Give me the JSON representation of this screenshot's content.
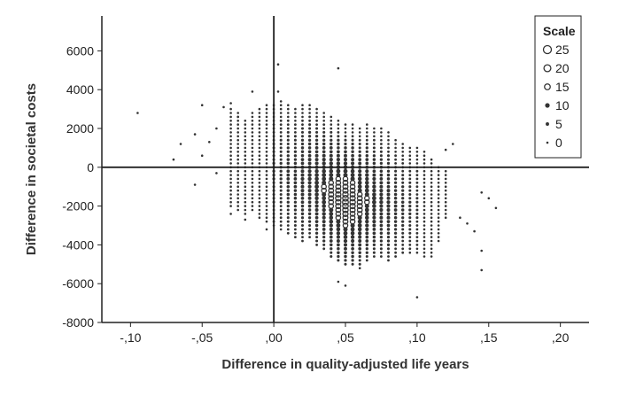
{
  "chart_data": {
    "type": "scatter",
    "title": "",
    "xlabel": "Difference in quality-adjusted life years",
    "ylabel": "Difference in societal costs",
    "xlim": [
      -0.12,
      0.22
    ],
    "ylim": [
      -8000,
      7800
    ],
    "x_ticks": [
      -0.1,
      -0.05,
      0.0,
      0.05,
      0.1,
      0.15,
      0.2
    ],
    "x_tick_labels": [
      "-,10",
      "-,05",
      ",00",
      ",05",
      ",10",
      ",15",
      ",20"
    ],
    "y_ticks": [
      -8000,
      -6000,
      -4000,
      -2000,
      0,
      2000,
      4000,
      6000
    ],
    "y_tick_labels": [
      "-8000",
      "-6000",
      "-4000",
      "-2000",
      "0",
      "2000",
      "4000",
      "6000"
    ],
    "reference_lines": {
      "x": 0,
      "y": 0
    },
    "grid": false,
    "point_color": "#333333",
    "legend": {
      "title": "Scale",
      "position": "top-right",
      "entries": [
        "25",
        "20",
        "15",
        "10",
        "5",
        "0"
      ],
      "sizes": [
        25,
        20,
        15,
        10,
        5,
        0
      ]
    },
    "series": [
      {
        "name": "",
        "note": "Points are bubbles whose size reflects the legend 'Scale' count. Outliers listed explicitly; dense center cloud estimated.",
        "points": [
          {
            "x": -0.095,
            "y": 2800,
            "size": 0
          },
          {
            "x": -0.07,
            "y": 400,
            "size": 0
          },
          {
            "x": -0.065,
            "y": 1200,
            "size": 0
          },
          {
            "x": -0.055,
            "y": 1700,
            "size": 0
          },
          {
            "x": -0.055,
            "y": -900,
            "size": 0
          },
          {
            "x": -0.05,
            "y": 3200,
            "size": 0
          },
          {
            "x": -0.05,
            "y": 600,
            "size": 0
          },
          {
            "x": -0.045,
            "y": 1300,
            "size": 0
          },
          {
            "x": -0.04,
            "y": 2000,
            "size": 0
          },
          {
            "x": -0.04,
            "y": -300,
            "size": 0
          },
          {
            "x": -0.035,
            "y": 3100,
            "size": 0
          },
          {
            "x": -0.03,
            "y": 3300,
            "size": 0
          },
          {
            "x": -0.03,
            "y": -2400,
            "size": 0
          },
          {
            "x": -0.025,
            "y": 2600,
            "size": 0
          },
          {
            "x": -0.02,
            "y": -2700,
            "size": 0
          },
          {
            "x": -0.015,
            "y": 3900,
            "size": 0
          },
          {
            "x": -0.005,
            "y": -3200,
            "size": 0
          },
          {
            "x": 0.003,
            "y": 5300,
            "size": 0
          },
          {
            "x": 0.003,
            "y": 3900,
            "size": 0
          },
          {
            "x": 0.045,
            "y": 5100,
            "size": 0
          },
          {
            "x": 0.045,
            "y": -5900,
            "size": 0
          },
          {
            "x": 0.05,
            "y": -6100,
            "size": 0
          },
          {
            "x": 0.06,
            "y": -5200,
            "size": 0
          },
          {
            "x": 0.1,
            "y": -6700,
            "size": 0
          },
          {
            "x": 0.12,
            "y": 900,
            "size": 0
          },
          {
            "x": 0.125,
            "y": 1200,
            "size": 0
          },
          {
            "x": 0.13,
            "y": -2600,
            "size": 0
          },
          {
            "x": 0.135,
            "y": -2900,
            "size": 0
          },
          {
            "x": 0.14,
            "y": -3300,
            "size": 0
          },
          {
            "x": 0.145,
            "y": -1300,
            "size": 0
          },
          {
            "x": 0.145,
            "y": -4300,
            "size": 0
          },
          {
            "x": 0.145,
            "y": -5300,
            "size": 0
          },
          {
            "x": 0.15,
            "y": -1600,
            "size": 0
          },
          {
            "x": 0.155,
            "y": -2100,
            "size": 0
          }
        ]
      }
    ],
    "cloud": [
      {
        "x": -0.03,
        "y_min": -2000,
        "y_max": 3000,
        "size": 0
      },
      {
        "x": -0.025,
        "y_min": -2200,
        "y_max": 2800,
        "size": 0
      },
      {
        "x": -0.02,
        "y_min": -2400,
        "y_max": 2400,
        "size": 0
      },
      {
        "x": -0.015,
        "y_min": -2200,
        "y_max": 2800,
        "size": 0
      },
      {
        "x": -0.01,
        "y_min": -2600,
        "y_max": 3000,
        "size": 0
      },
      {
        "x": -0.005,
        "y_min": -2800,
        "y_max": 3300,
        "size": 0
      },
      {
        "x": 0.0,
        "y_min": -3000,
        "y_max": 3300,
        "size": 3
      },
      {
        "x": 0.005,
        "y_min": -3200,
        "y_max": 3500,
        "size": 3
      },
      {
        "x": 0.01,
        "y_min": -3400,
        "y_max": 3200,
        "size": 5
      },
      {
        "x": 0.015,
        "y_min": -3600,
        "y_max": 3000,
        "size": 5
      },
      {
        "x": 0.02,
        "y_min": -3800,
        "y_max": 3200,
        "size": 7
      },
      {
        "x": 0.025,
        "y_min": -3600,
        "y_max": 3300,
        "size": 8
      },
      {
        "x": 0.03,
        "y_min": -4000,
        "y_max": 3000,
        "size": 10
      },
      {
        "x": 0.035,
        "y_min": -4200,
        "y_max": 2800,
        "size": 12
      },
      {
        "x": 0.04,
        "y_min": -4600,
        "y_max": 2600,
        "size": 14
      },
      {
        "x": 0.045,
        "y_min": -4800,
        "y_max": 2400,
        "size": 16
      },
      {
        "x": 0.05,
        "y_min": -5000,
        "y_max": 2200,
        "size": 18
      },
      {
        "x": 0.055,
        "y_min": -5000,
        "y_max": 2200,
        "size": 16
      },
      {
        "x": 0.06,
        "y_min": -5000,
        "y_max": 2000,
        "size": 14
      },
      {
        "x": 0.065,
        "y_min": -4800,
        "y_max": 2200,
        "size": 12
      },
      {
        "x": 0.07,
        "y_min": -4600,
        "y_max": 2000,
        "size": 10
      },
      {
        "x": 0.075,
        "y_min": -4600,
        "y_max": 2000,
        "size": 8
      },
      {
        "x": 0.08,
        "y_min": -4800,
        "y_max": 1800,
        "size": 7
      },
      {
        "x": 0.085,
        "y_min": -4600,
        "y_max": 1400,
        "size": 5
      },
      {
        "x": 0.09,
        "y_min": -4400,
        "y_max": 1200,
        "size": 4
      },
      {
        "x": 0.095,
        "y_min": -4400,
        "y_max": 1000,
        "size": 3
      },
      {
        "x": 0.1,
        "y_min": -4400,
        "y_max": 1000,
        "size": 2
      },
      {
        "x": 0.105,
        "y_min": -4600,
        "y_max": 800,
        "size": 0
      },
      {
        "x": 0.11,
        "y_min": -4600,
        "y_max": 400,
        "size": 0
      },
      {
        "x": 0.115,
        "y_min": -3800,
        "y_max": 0,
        "size": 0
      },
      {
        "x": 0.12,
        "y_min": -2600,
        "y_max": -200,
        "size": 0
      }
    ]
  }
}
